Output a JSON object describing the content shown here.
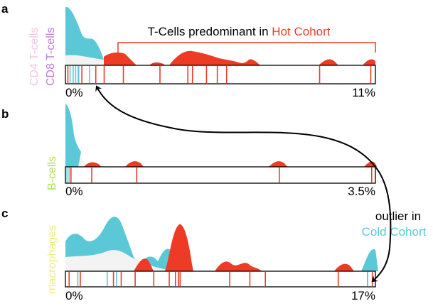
{
  "colors": {
    "cold": "#5bc8d8",
    "hot": "#ee3b26",
    "cd4": "#f4c4e6",
    "cd8": "#c07ad6",
    "bcells": "#a8e05a",
    "macrophages": "#f0ec7a",
    "neutral_fill": "#f3f3f3",
    "bracket": "#ee3b26",
    "arrow": "#000000"
  },
  "panels": [
    {
      "id": "a",
      "letter": "a",
      "labels": [
        "CD4 T-cells",
        "CD8 T-cells"
      ],
      "label_colors": [
        "cd4",
        "cd8"
      ],
      "range_min": "0%",
      "range_max": "11%",
      "cold_ticks": [
        0.015,
        0.025,
        0.033,
        0.043,
        0.078
      ],
      "hot_ticks": [
        0.008,
        0.042,
        0.053,
        0.098,
        0.125,
        0.187,
        0.305,
        0.395,
        0.41,
        0.455,
        0.49,
        0.52,
        0.82,
        0.985
      ]
    },
    {
      "id": "b",
      "letter": "b",
      "labels": [
        "B-cells"
      ],
      "label_colors": [
        "bcells"
      ],
      "range_min": "0%",
      "range_max": "3.5%",
      "cold_ticks": [
        0.005,
        0.012
      ],
      "hot_ticks": [
        0.018,
        0.085,
        0.23,
        0.69,
        0.988
      ]
    },
    {
      "id": "c",
      "letter": "c",
      "labels": [
        "macrophages"
      ],
      "label_colors": [
        "macrophages"
      ],
      "range_min": "0%",
      "range_max": "17%",
      "cold_ticks": [
        0.04,
        0.135,
        0.165,
        0.975
      ],
      "hot_ticks": [
        0.012,
        0.048,
        0.155,
        0.18,
        0.225,
        0.285,
        0.335,
        0.355,
        0.365,
        0.37,
        0.53,
        0.595,
        0.645,
        0.88,
        0.975,
        0.99
      ]
    }
  ],
  "annotations": {
    "hot_prefix": "T-Cells predominant in ",
    "hot_suffix": "Hot Cohort",
    "outlier_line1": "outlier in",
    "outlier_line2": "Cold Cohort"
  }
}
